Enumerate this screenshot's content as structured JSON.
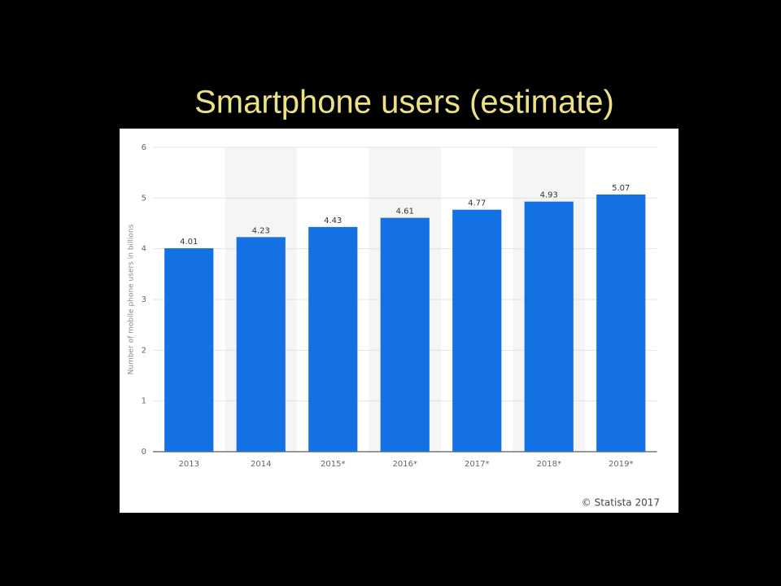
{
  "chart_data": {
    "type": "bar",
    "title": "Smartphone users (estimate)",
    "y_label": "Number of mobile phone users in billions",
    "source": "© Statista 2017",
    "categories": [
      "2013",
      "2014",
      "2015*",
      "2016*",
      "2017*",
      "2018*",
      "2019*"
    ],
    "values": [
      4.01,
      4.23,
      4.43,
      4.61,
      4.77,
      4.93,
      5.07
    ],
    "color": "#1471e3",
    "ylim": [
      0,
      6
    ],
    "yticks": [
      0,
      1,
      2,
      3,
      4,
      5,
      6
    ],
    "grid": true
  }
}
